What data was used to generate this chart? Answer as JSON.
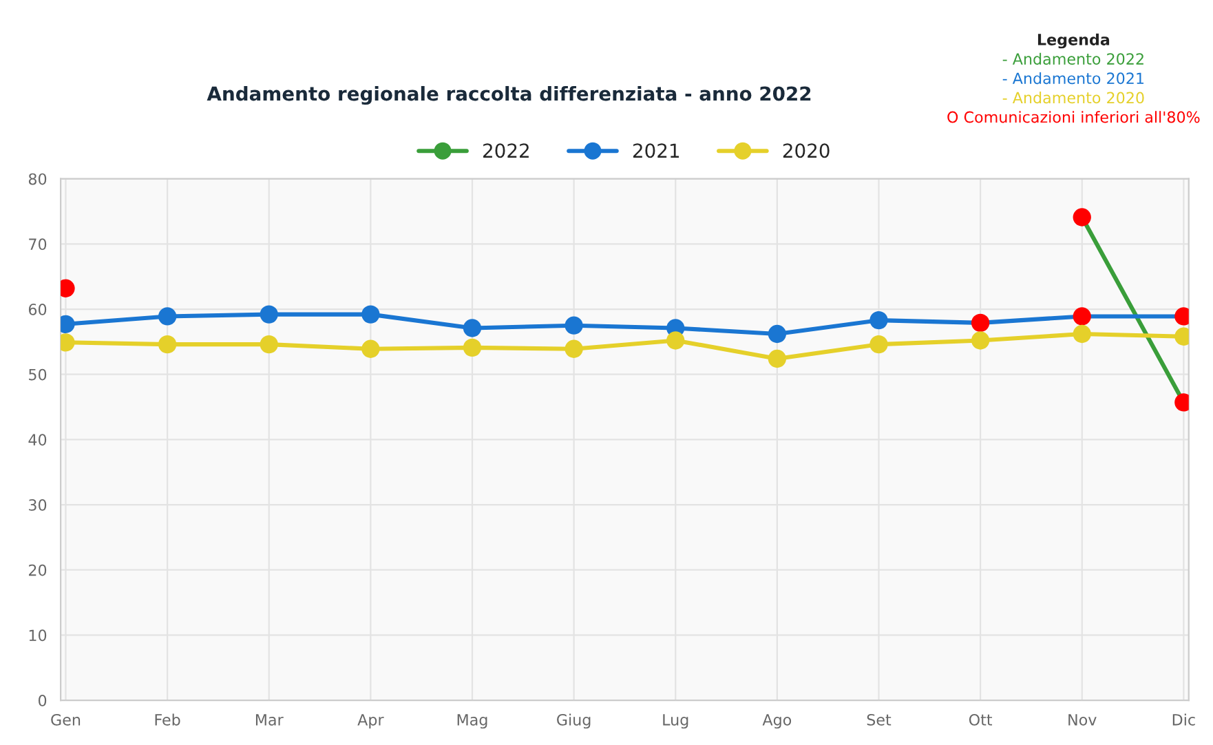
{
  "chart_data": {
    "type": "line",
    "title": "Andamento regionale raccolta differenziata - anno 2022",
    "categories": [
      "Gen",
      "Feb",
      "Mar",
      "Apr",
      "Mag",
      "Giug",
      "Lug",
      "Ago",
      "Set",
      "Ott",
      "Nov",
      "Dic"
    ],
    "series": [
      {
        "name": "2022",
        "color": "#3a9e3a",
        "values": [
          63.2,
          null,
          null,
          null,
          null,
          null,
          null,
          null,
          null,
          null,
          74.1,
          45.7
        ],
        "colors": [
          "#ff0000",
          null,
          null,
          null,
          null,
          null,
          null,
          null,
          null,
          null,
          "#ff0000",
          "#ff0000"
        ]
      },
      {
        "name": "2021",
        "color": "#1a76d2",
        "values": [
          57.7,
          58.9,
          59.2,
          59.2,
          57.1,
          57.5,
          57.1,
          56.2,
          58.3,
          57.9,
          58.9,
          58.9
        ],
        "colors": [
          "#1a76d2",
          "#1a76d2",
          "#1a76d2",
          "#1a76d2",
          "#1a76d2",
          "#1a76d2",
          "#1a76d2",
          "#1a76d2",
          "#1a76d2",
          "#ff0000",
          "#ff0000",
          "#ff0000"
        ]
      },
      {
        "name": "2020",
        "color": "#e5d02a",
        "values": [
          54.9,
          54.6,
          54.6,
          53.9,
          54.1,
          53.9,
          55.2,
          52.4,
          54.6,
          55.2,
          56.2,
          55.8
        ],
        "colors": [
          "#e5d02a",
          "#e5d02a",
          "#e5d02a",
          "#e5d02a",
          "#e5d02a",
          "#e5d02a",
          "#e5d02a",
          "#e5d02a",
          "#e5d02a",
          "#e5d02a",
          "#e5d02a",
          "#e5d02a"
        ]
      }
    ],
    "ylim": [
      0,
      80
    ],
    "yticks": [
      0,
      10,
      20,
      30,
      40,
      50,
      60,
      70,
      80
    ],
    "grid": true,
    "legend": "top",
    "marker": "circle",
    "line_style": "solid",
    "annotations": [
      "Legenda",
      "- Andamento 2022",
      "- Andamento 2021",
      "- Andamento 2020",
      "O Comunicazioni inferiori all'80%"
    ]
  }
}
